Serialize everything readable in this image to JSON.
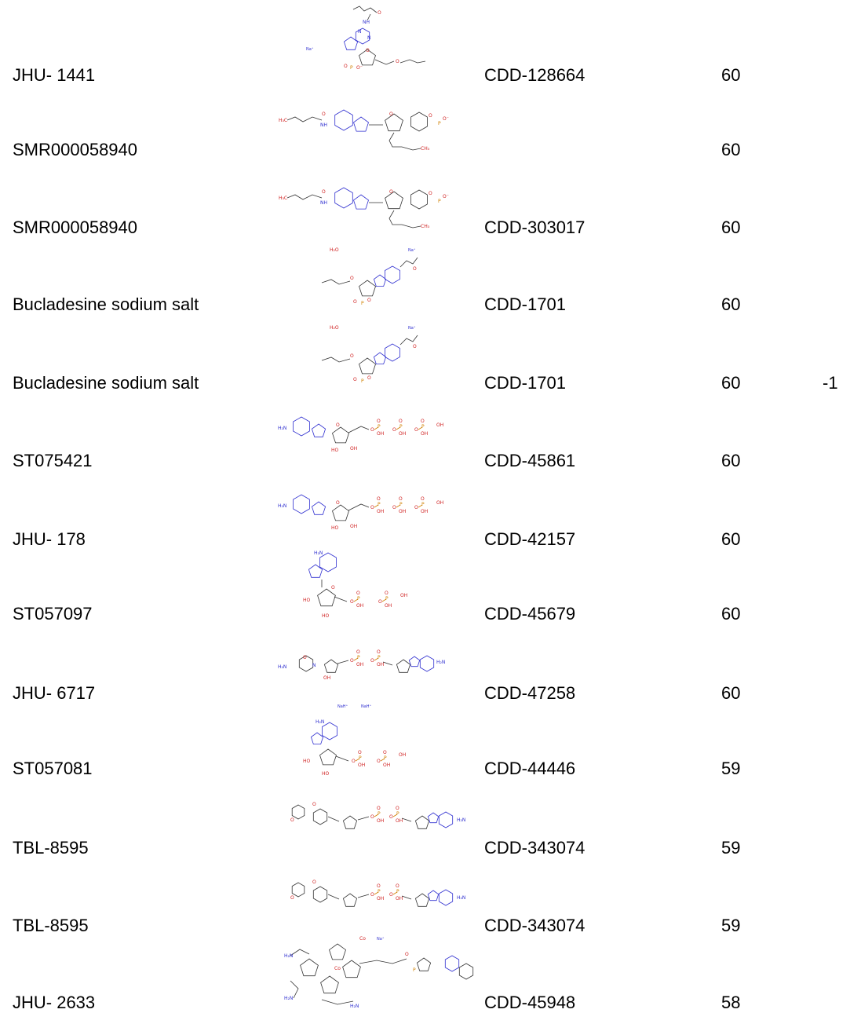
{
  "rows": [
    {
      "name": "JHU- 1441",
      "cdd": "CDD-128664",
      "score": "60",
      "extra": "",
      "structure": "dibutyryl-camp-sodium-structure"
    },
    {
      "name": "SMR000058940",
      "cdd": "",
      "score": "60",
      "extra": "",
      "structure": "dibutyryl-camp-structure"
    },
    {
      "name": "SMR000058940",
      "cdd": "CDD-303017",
      "score": "60",
      "extra": "",
      "structure": "dibutyryl-camp-structure"
    },
    {
      "name": "Bucladesine sodium salt",
      "cdd": "CDD-1701",
      "score": "60",
      "extra": "",
      "structure": "bucladesine-hydrate-structure"
    },
    {
      "name": "Bucladesine sodium salt",
      "cdd": "CDD-1701",
      "score": "60",
      "extra": "-1",
      "structure": "bucladesine-hydrate-structure"
    },
    {
      "name": "ST075421",
      "cdd": "CDD-45861",
      "score": "60",
      "extra": "",
      "structure": "atp-structure"
    },
    {
      "name": "JHU- 178",
      "cdd": "CDD-42157",
      "score": "60",
      "extra": "",
      "structure": "atp-structure"
    },
    {
      "name": "ST057097",
      "cdd": "CDD-45679",
      "score": "60",
      "extra": "",
      "structure": "adp-structure"
    },
    {
      "name": "JHU- 6717",
      "cdd": "CDD-47258",
      "score": "60",
      "extra": "",
      "structure": "nad-structure"
    },
    {
      "name": "ST057081",
      "cdd": "CDD-44446",
      "score": "59",
      "extra": "",
      "structure": "adp-sodium-structure"
    },
    {
      "name": "TBL-8595",
      "cdd": "CDD-343074",
      "score": "59",
      "extra": "",
      "structure": "nad-analog-structure"
    },
    {
      "name": "TBL-8595",
      "cdd": "CDD-343074",
      "score": "59",
      "extra": "",
      "structure": "nad-analog-structure"
    },
    {
      "name": "JHU- 2633",
      "cdd": "CDD-45948",
      "score": "58",
      "extra": "",
      "structure": "cobalamin-structure"
    }
  ],
  "atoms": {
    "n": "N",
    "nh": "NH",
    "nh2": "H₂N",
    "o": "O",
    "oh": "OH",
    "ho": "HO",
    "p": "P",
    "o_minus": "O⁻",
    "na": "Na⁺",
    "h2o": "H₂O",
    "ch3": "CH₃",
    "h3c": "H₃C",
    "nah": "NaH⁺",
    "co": "Co"
  }
}
